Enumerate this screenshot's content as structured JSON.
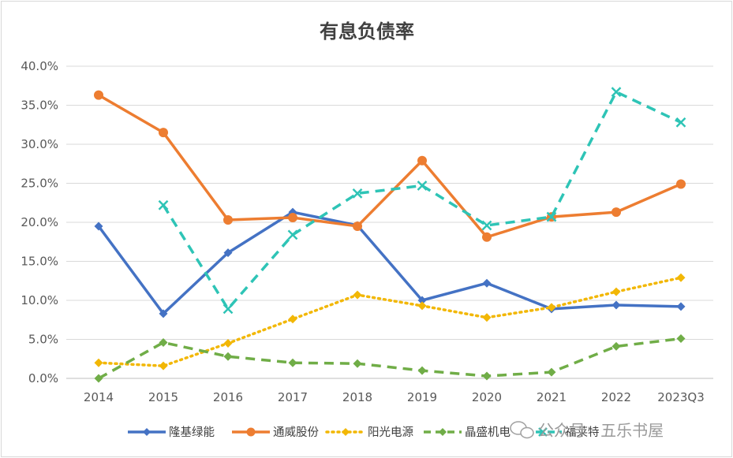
{
  "chart_data": {
    "type": "line",
    "title": "有息负债率",
    "categories": [
      "2014",
      "2015",
      "2016",
      "2017",
      "2018",
      "2019",
      "2020",
      "2021",
      "2022",
      "2023Q3"
    ],
    "ylim": [
      0,
      40
    ],
    "yticks": [
      "0.0%",
      "5.0%",
      "10.0%",
      "15.0%",
      "20.0%",
      "25.0%",
      "30.0%",
      "35.0%",
      "40.0%"
    ],
    "grid": true,
    "legend_position": "bottom",
    "series": [
      {
        "name": "隆基绿能",
        "color": "#4472c4",
        "dash": "solid",
        "marker": "diamond",
        "values": [
          19.5,
          8.3,
          16.1,
          21.3,
          19.6,
          10.0,
          12.2,
          8.9,
          9.4,
          9.2
        ]
      },
      {
        "name": "通威股份",
        "color": "#ed7d31",
        "dash": "solid",
        "marker": "circle",
        "values": [
          36.3,
          31.5,
          20.3,
          20.6,
          19.5,
          27.9,
          18.1,
          20.7,
          21.3,
          24.9
        ]
      },
      {
        "name": "阳光电源",
        "color": "#f2b705",
        "dash": "dot",
        "marker": "diamond",
        "values": [
          2.0,
          1.6,
          4.5,
          7.6,
          10.7,
          9.3,
          7.8,
          9.1,
          11.1,
          12.9
        ]
      },
      {
        "name": "晶盛机电",
        "color": "#70ad47",
        "dash": "dash",
        "marker": "diamond",
        "values": [
          0.0,
          4.6,
          2.8,
          2.0,
          1.9,
          1.0,
          0.3,
          0.8,
          4.1,
          5.1
        ]
      },
      {
        "name": "福莱特",
        "color": "#2ec4b6",
        "dash": "dash",
        "marker": "x",
        "values": [
          null,
          22.2,
          8.9,
          18.4,
          23.7,
          24.7,
          19.6,
          20.7,
          36.7,
          32.8
        ]
      }
    ]
  },
  "watermark": {
    "text": "公众号 · 五乐书屋"
  }
}
